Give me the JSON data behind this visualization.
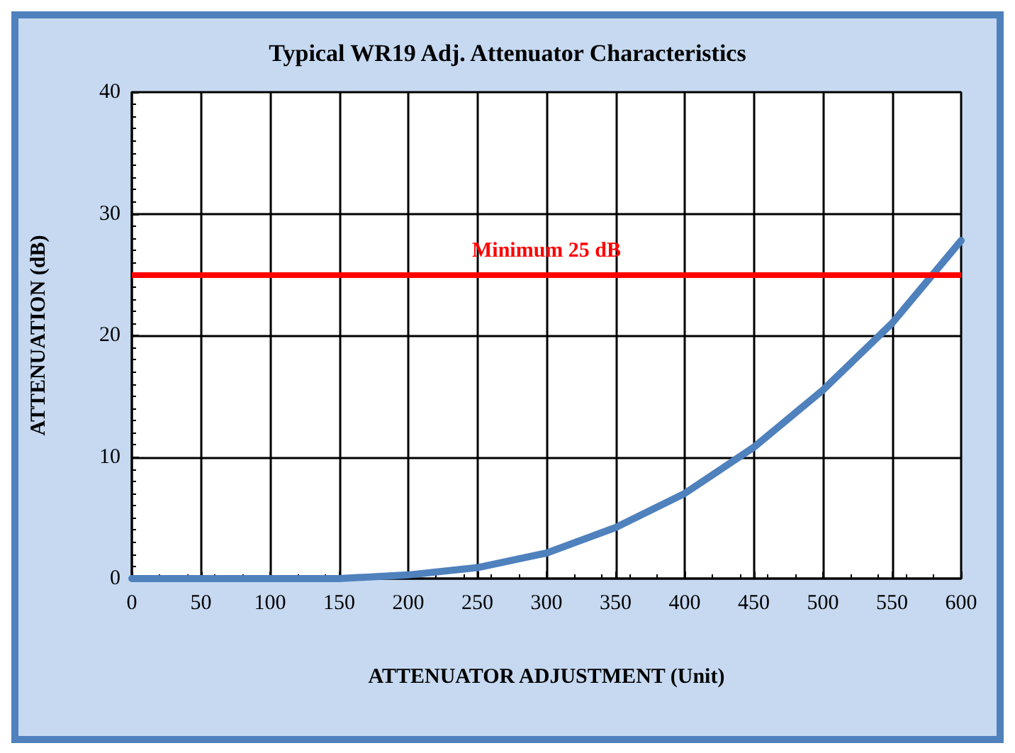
{
  "chart_data": {
    "type": "line",
    "title": "Typical WR19 Adj. Attenuator Characteristics",
    "xlabel": "ATTENUATOR ADJUSTMENT (Unit)",
    "ylabel": "ATTENUATION (dB)",
    "x": [
      0,
      50,
      100,
      150,
      200,
      250,
      300,
      350,
      400,
      450,
      500,
      550,
      600
    ],
    "series": [
      {
        "color": "#4f81bd",
        "values": [
          0,
          0,
          0,
          0,
          0.3,
          0.9,
          2.1,
          4.2,
          7,
          10.8,
          15.5,
          21,
          27.8
        ]
      }
    ],
    "xlim": [
      0,
      600
    ],
    "xticks": [
      0,
      50,
      100,
      150,
      200,
      250,
      300,
      350,
      400,
      450,
      500,
      550,
      600
    ],
    "ylim": [
      0,
      40
    ],
    "yticks": [
      0,
      10,
      20,
      30,
      40
    ],
    "ref_lines": [
      {
        "axis": "y",
        "value": 25,
        "label": "Minimum 25 dB",
        "color": "#ff0000"
      }
    ],
    "grid": true,
    "marker": "none",
    "line_style": "solid"
  }
}
